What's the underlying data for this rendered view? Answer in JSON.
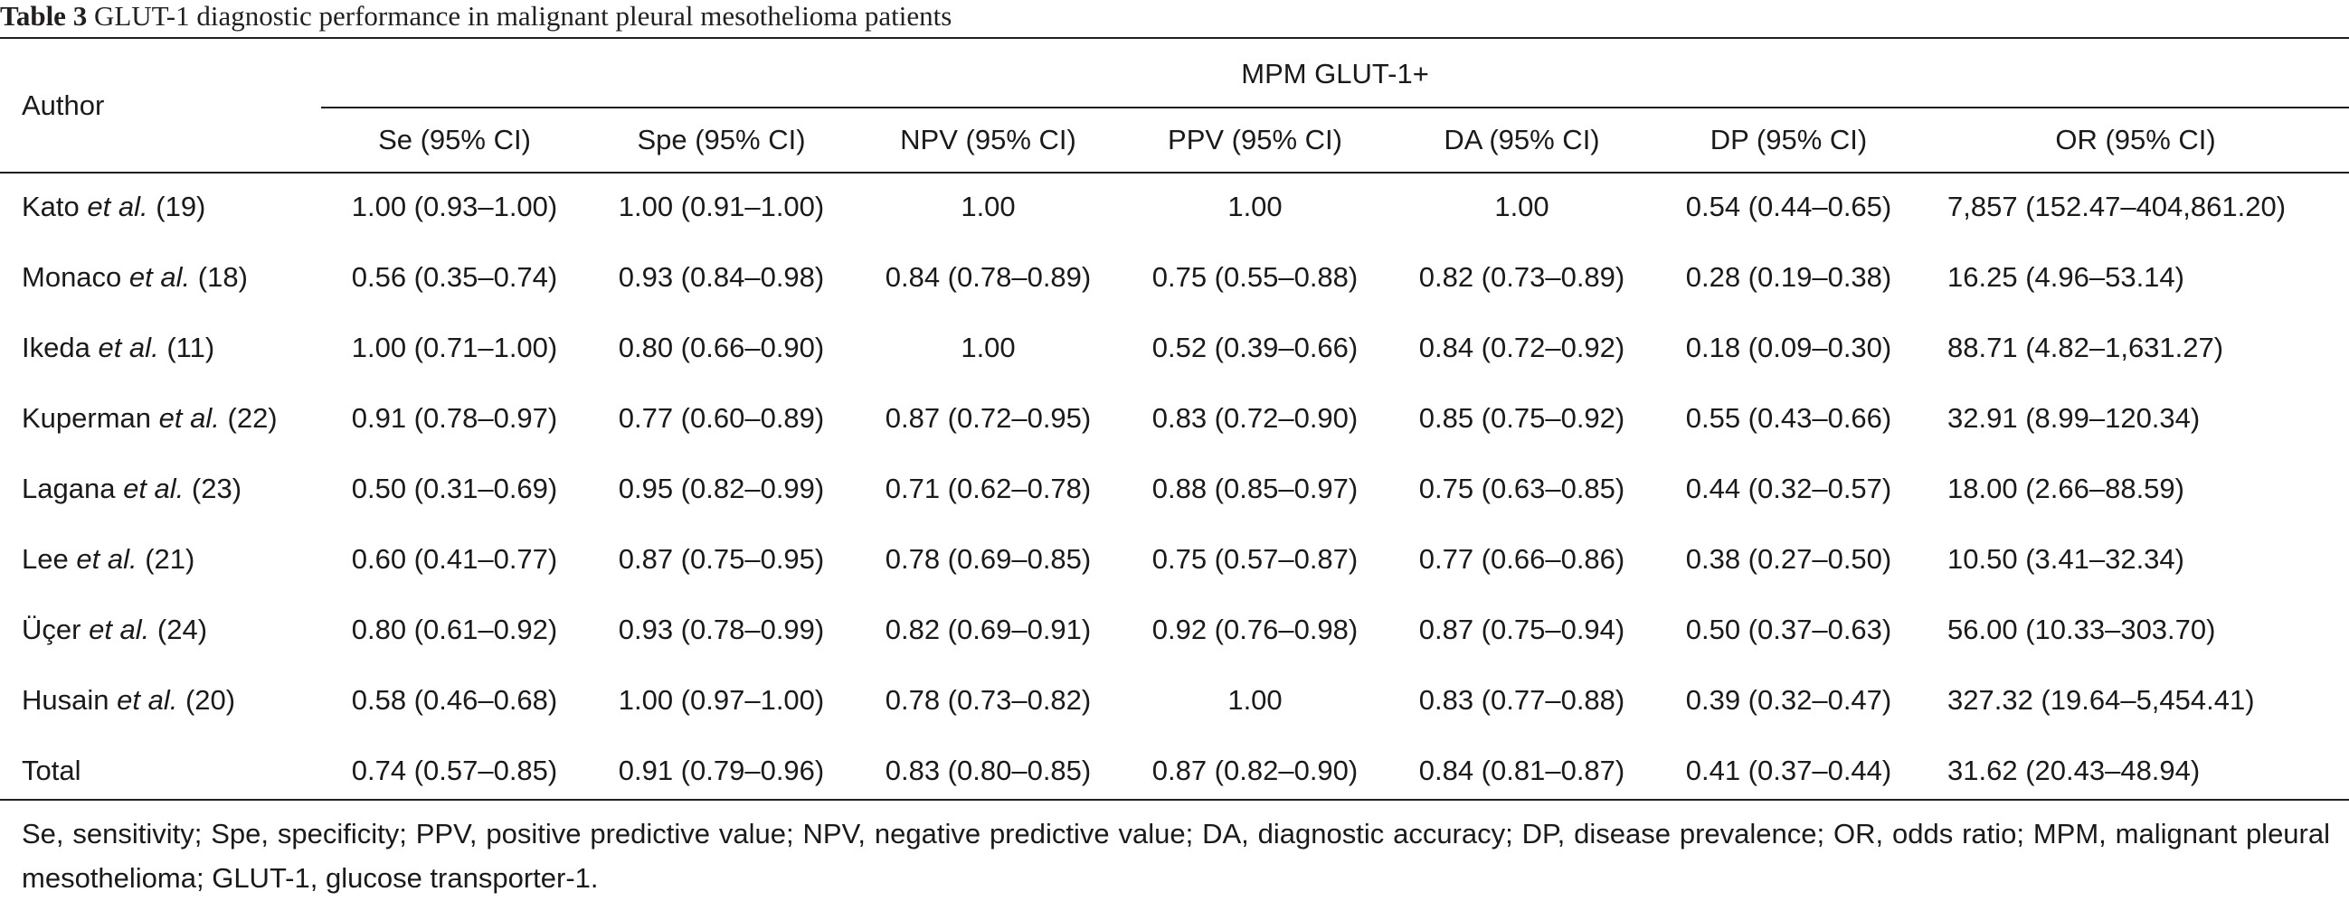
{
  "caption": {
    "label": "Table 3",
    "text": "GLUT-1 diagnostic performance in malignant pleural mesothelioma patients"
  },
  "header": {
    "author": "Author",
    "group": "MPM GLUT-1+",
    "columns": [
      "Se (95% CI)",
      "Spe (95% CI)",
      "NPV (95% CI)",
      "PPV (95% CI)",
      "DA (95% CI)",
      "DP (95% CI)",
      "OR (95% CI)"
    ]
  },
  "rows": [
    {
      "author": "Kato",
      "etal": "et al.",
      "ref": "(19)",
      "se": "1.00 (0.93–1.00)",
      "spe": "1.00 (0.91–1.00)",
      "npv": "1.00",
      "ppv": "1.00",
      "da": "1.00",
      "dp": "0.54 (0.44–0.65)",
      "or": "7,857 (152.47–404,861.20)"
    },
    {
      "author": "Monaco",
      "etal": "et al.",
      "ref": "(18)",
      "se": "0.56 (0.35–0.74)",
      "spe": "0.93 (0.84–0.98)",
      "npv": "0.84 (0.78–0.89)",
      "ppv": "0.75 (0.55–0.88)",
      "da": "0.82 (0.73–0.89)",
      "dp": "0.28 (0.19–0.38)",
      "or": "16.25 (4.96–53.14)"
    },
    {
      "author": "Ikeda",
      "etal": "et al.",
      "ref": "(11)",
      "se": "1.00 (0.71–1.00)",
      "spe": "0.80 (0.66–0.90)",
      "npv": "1.00",
      "ppv": "0.52 (0.39–0.66)",
      "da": "0.84 (0.72–0.92)",
      "dp": "0.18 (0.09–0.30)",
      "or": "88.71 (4.82–1,631.27)"
    },
    {
      "author": "Kuperman",
      "etal": "et al.",
      "ref": "(22)",
      "se": "0.91 (0.78–0.97)",
      "spe": "0.77 (0.60–0.89)",
      "npv": "0.87 (0.72–0.95)",
      "ppv": "0.83 (0.72–0.90)",
      "da": "0.85 (0.75–0.92)",
      "dp": "0.55 (0.43–0.66)",
      "or": "32.91 (8.99–120.34)"
    },
    {
      "author": "Lagana",
      "etal": "et al.",
      "ref": "(23)",
      "se": "0.50 (0.31–0.69)",
      "spe": "0.95 (0.82–0.99)",
      "npv": "0.71 (0.62–0.78)",
      "ppv": "0.88 (0.85–0.97)",
      "da": "0.75 (0.63–0.85)",
      "dp": "0.44 (0.32–0.57)",
      "or": "18.00 (2.66–88.59)"
    },
    {
      "author": "Lee",
      "etal": "et al.",
      "ref": "(21)",
      "se": "0.60 (0.41–0.77)",
      "spe": "0.87 (0.75–0.95)",
      "npv": "0.78 (0.69–0.85)",
      "ppv": "0.75 (0.57–0.87)",
      "da": "0.77 (0.66–0.86)",
      "dp": "0.38 (0.27–0.50)",
      "or": "10.50 (3.41–32.34)"
    },
    {
      "author": "Üçer",
      "etal": "et al.",
      "ref": "(24)",
      "se": "0.80 (0.61–0.92)",
      "spe": "0.93 (0.78–0.99)",
      "npv": "0.82 (0.69–0.91)",
      "ppv": "0.92 (0.76–0.98)",
      "da": "0.87 (0.75–0.94)",
      "dp": "0.50 (0.37–0.63)",
      "or": "56.00 (10.33–303.70)"
    },
    {
      "author": "Husain",
      "etal": "et al.",
      "ref": "(20)",
      "se": "0.58 (0.46–0.68)",
      "spe": "1.00 (0.97–1.00)",
      "npv": "0.78 (0.73–0.82)",
      "ppv": "1.00",
      "da": "0.83 (0.77–0.88)",
      "dp": "0.39 (0.32–0.47)",
      "or": "327.32 (19.64–5,454.41)"
    },
    {
      "author": "Total",
      "etal": "",
      "ref": "",
      "se": "0.74 (0.57–0.85)",
      "spe": "0.91 (0.79–0.96)",
      "npv": "0.83 (0.80–0.85)",
      "ppv": "0.87 (0.82–0.90)",
      "da": "0.84 (0.81–0.87)",
      "dp": "0.41 (0.37–0.44)",
      "or": "31.62 (20.43–48.94)"
    }
  ],
  "footnote": "Se, sensitivity; Spe, specificity; PPV, positive predictive value; NPV, negative predictive value; DA, diagnostic accuracy; DP, disease prevalence; OR, odds ratio; MPM, malignant pleural mesothelioma; GLUT-1, glucose transporter-1."
}
